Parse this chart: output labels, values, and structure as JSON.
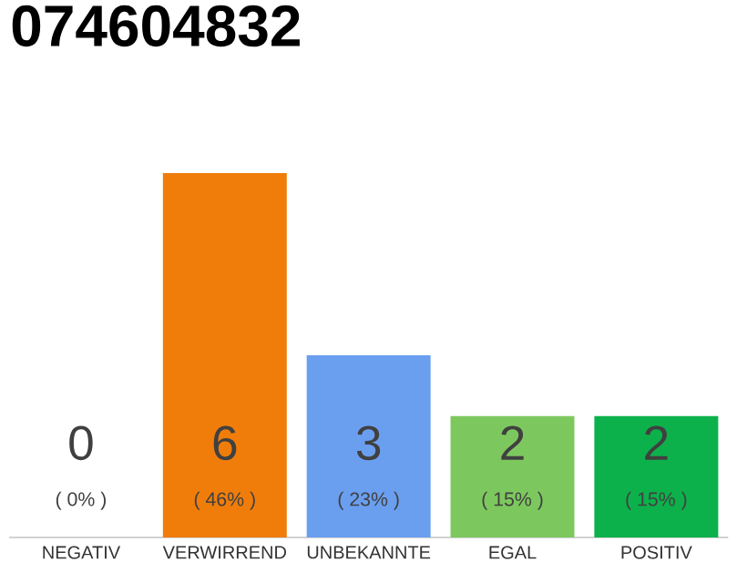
{
  "chart_data": {
    "type": "bar",
    "title": "074604832",
    "categories": [
      "NEGATIV",
      "VERWIRREND",
      "UNBEKANNTE",
      "EGAL",
      "POSITIV"
    ],
    "values": [
      0,
      6,
      3,
      2,
      2
    ],
    "colors": [
      "#b0b0b0",
      "#f07d0a",
      "#6a9ff0",
      "#7dc85e",
      "#0db14b"
    ],
    "data_labels": true,
    "annotations": [
      "( 0% )",
      "( 46% )",
      "( 23% )",
      "( 15% )",
      "( 15% )"
    ]
  }
}
